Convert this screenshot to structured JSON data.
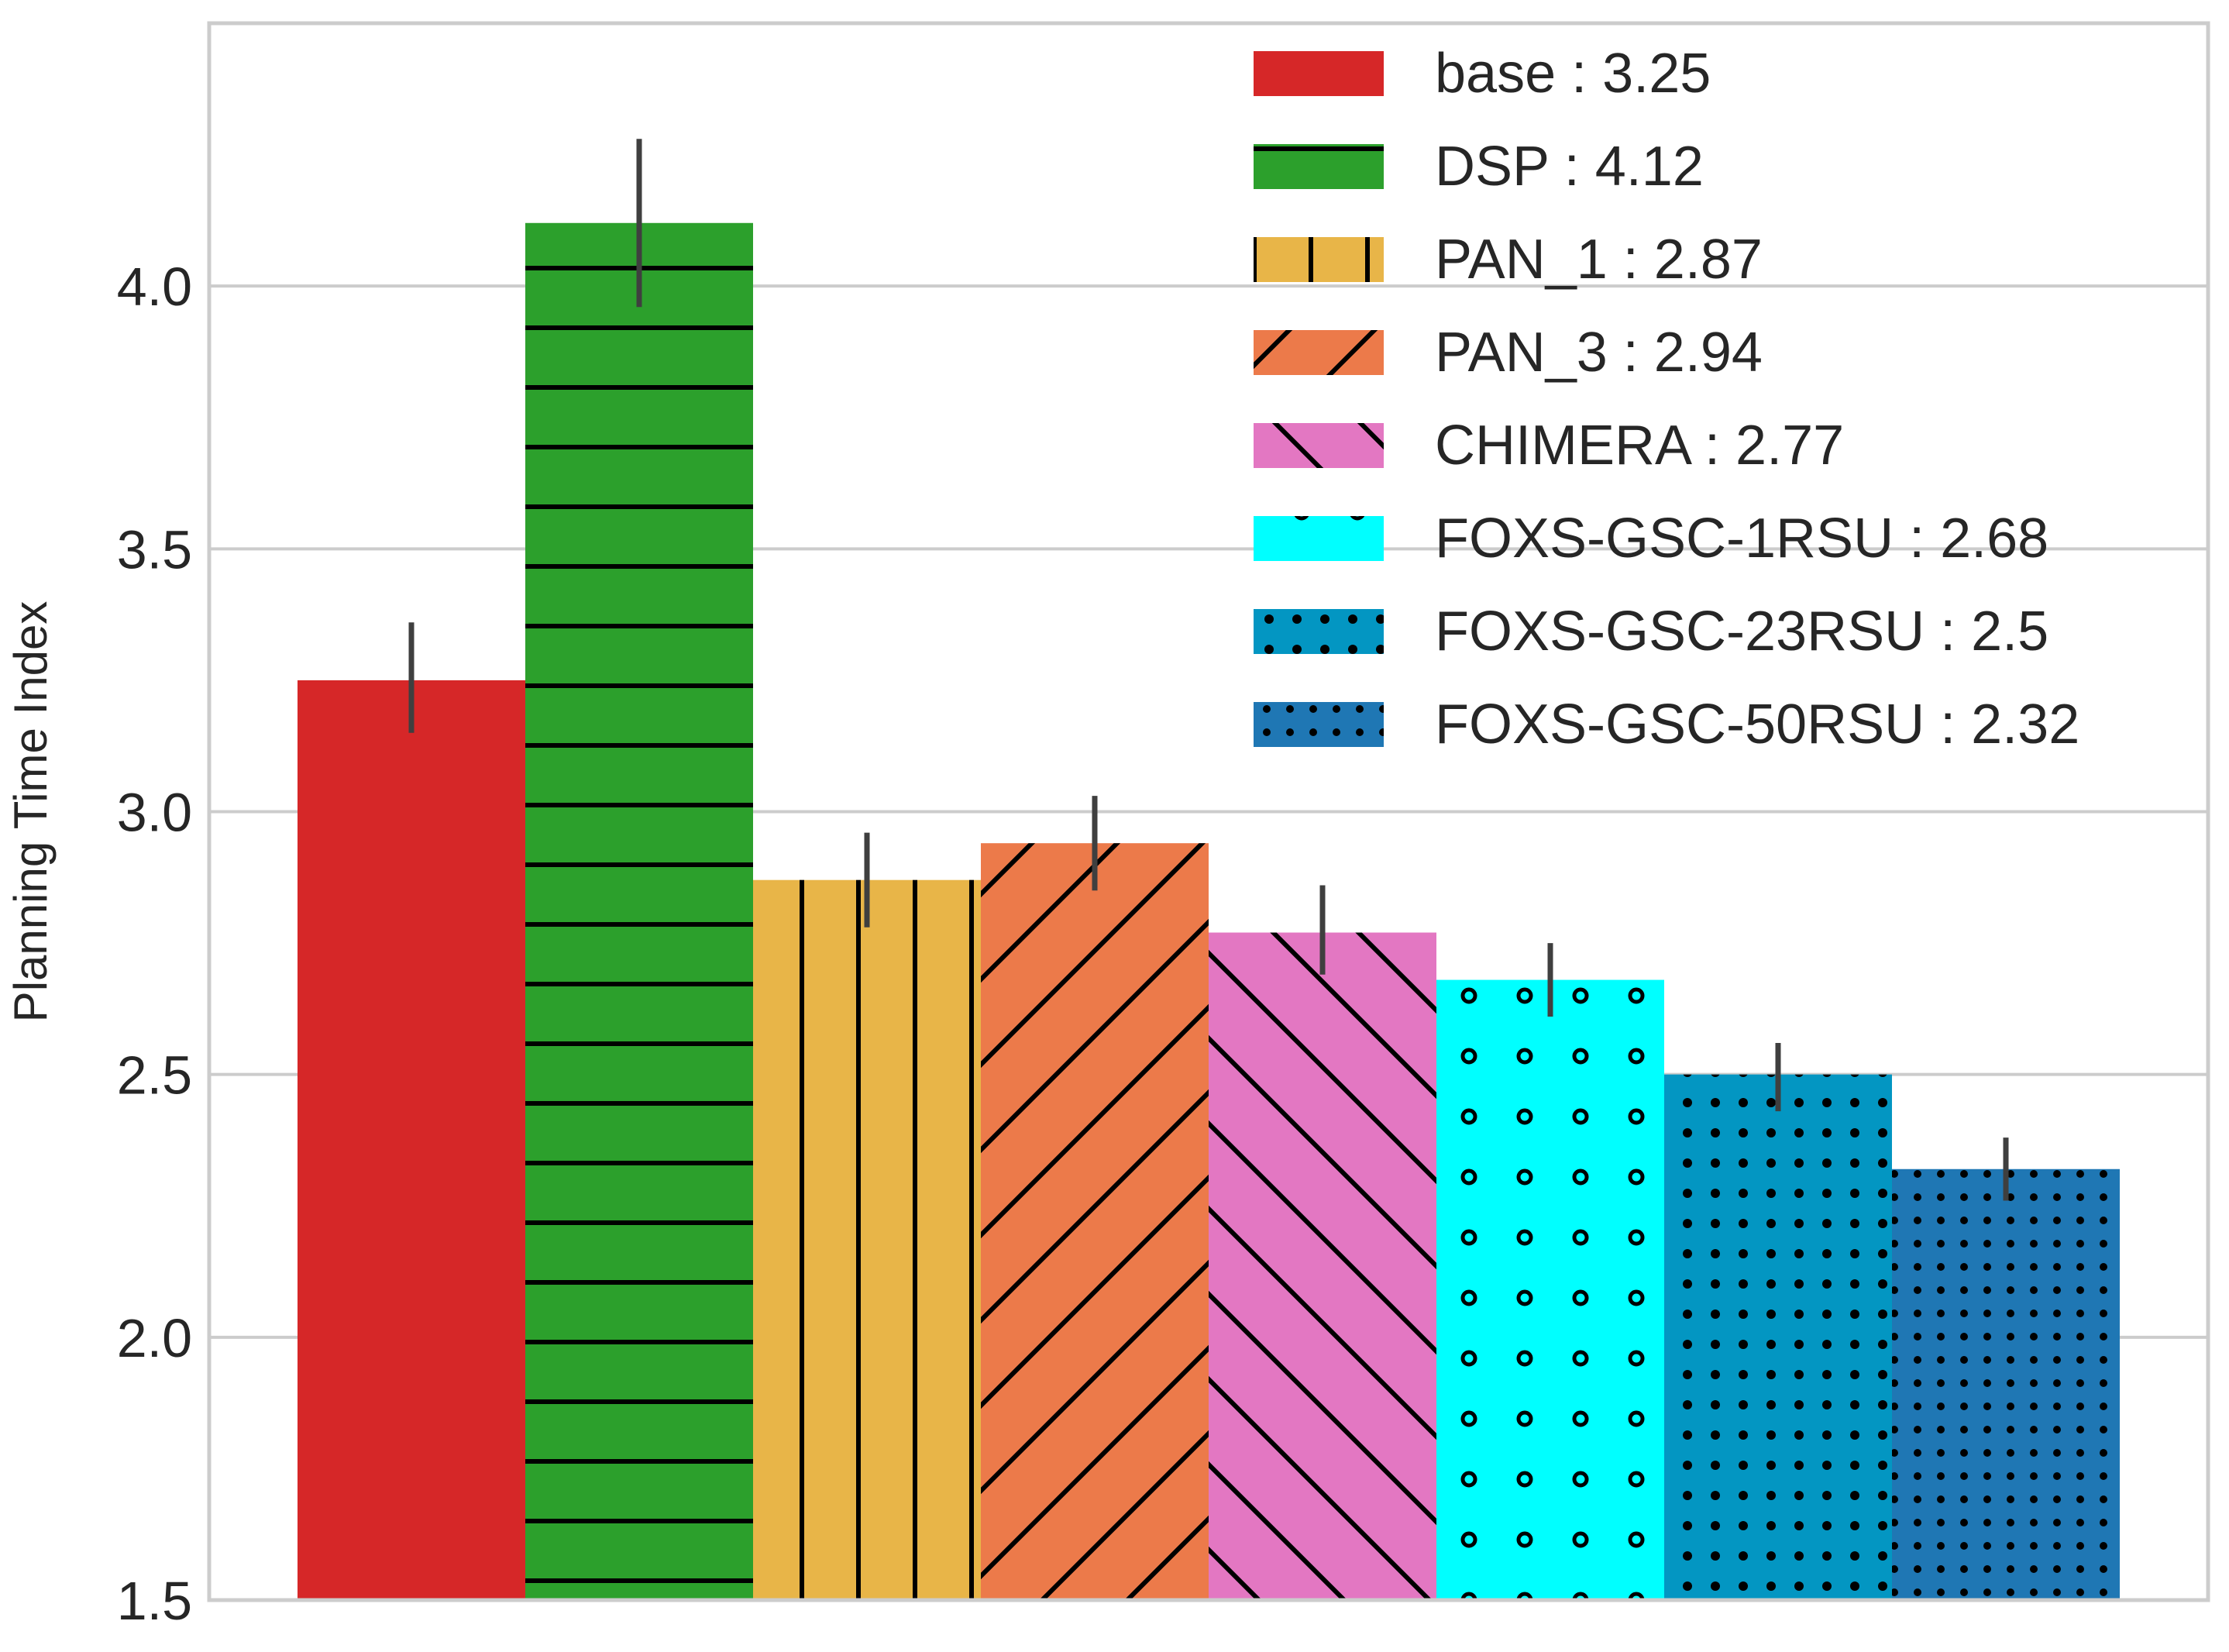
{
  "chart_data": {
    "type": "bar",
    "title": "",
    "xlabel": "",
    "ylabel": "Planning Time Index",
    "ylim": [
      1.5,
      4.5
    ],
    "yticks": [
      1.5,
      2.0,
      2.5,
      3.0,
      3.5,
      4.0
    ],
    "ytick_labels": [
      "1.5",
      "2.0",
      "2.5",
      "3.0",
      "3.5",
      "4.0"
    ],
    "grid": "horizontal",
    "legend_position": "top-right",
    "series": [
      {
        "name": "base",
        "legend": "base : 3.25",
        "value": 3.25,
        "err_low": 3.15,
        "err_high": 3.36,
        "color": "#d62728",
        "hatch": "none"
      },
      {
        "name": "DSP",
        "legend": "DSP : 4.12",
        "value": 4.12,
        "err_low": 3.96,
        "err_high": 4.28,
        "color": "#2ca02c",
        "hatch": "horizontal"
      },
      {
        "name": "PAN_1",
        "legend": "PAN_1 : 2.87",
        "value": 2.87,
        "err_low": 2.78,
        "err_high": 2.96,
        "color": "#e8b548",
        "hatch": "vertical"
      },
      {
        "name": "PAN_3",
        "legend": "PAN_3 : 2.94",
        "value": 2.94,
        "err_low": 2.85,
        "err_high": 3.03,
        "color": "#ec7a4a",
        "hatch": "forward-diagonal"
      },
      {
        "name": "CHIMERA",
        "legend": "CHIMERA : 2.77",
        "value": 2.77,
        "err_low": 2.69,
        "err_high": 2.86,
        "color": "#e377c2",
        "hatch": "back-diagonal"
      },
      {
        "name": "FOXS-GSC-1RSU",
        "legend": "FOXS-GSC-1RSU : 2.68",
        "value": 2.68,
        "err_low": 2.61,
        "err_high": 2.75,
        "color": "#00ffff",
        "hatch": "circles"
      },
      {
        "name": "FOXS-GSC-23RSU",
        "legend": "FOXS-GSC-23RSU : 2.5",
        "value": 2.5,
        "err_low": 2.43,
        "err_high": 2.56,
        "color": "#0396c2",
        "hatch": "dots"
      },
      {
        "name": "FOXS-GSC-50RSU",
        "legend": "FOXS-GSC-50RSU : 2.32",
        "value": 2.32,
        "err_low": 2.26,
        "err_high": 2.38,
        "color": "#1f77b4",
        "hatch": "small-dots"
      }
    ]
  }
}
